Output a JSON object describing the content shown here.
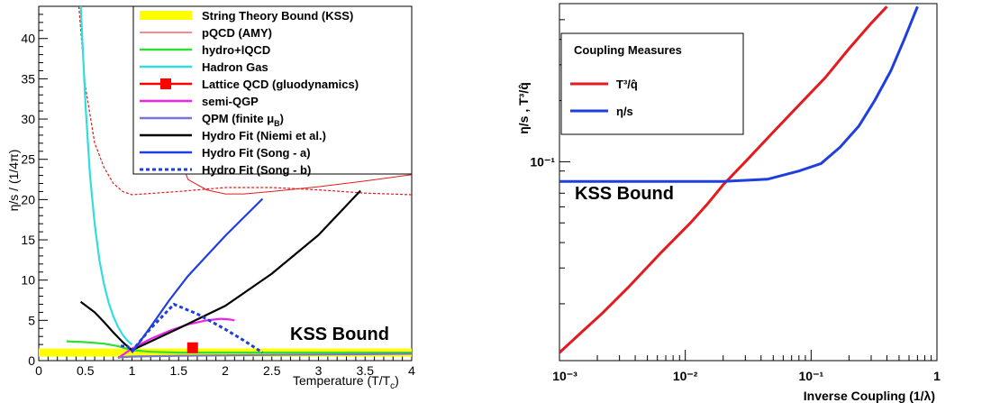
{
  "chart_data": [
    {
      "type": "line",
      "xlabel": "Temperature (T/T",
      "xlabel_sub": "c",
      "xlabel_close": ")",
      "ylabel": "η/s / (1/4π)",
      "xlim": [
        0,
        4
      ],
      "ylim": [
        0,
        44
      ],
      "x_ticks": [
        "0",
        "0.5",
        "1",
        "1.5",
        "2",
        "2.5",
        "3",
        "3.5",
        "4"
      ],
      "y_ticks": [
        "0",
        "5",
        "10",
        "15",
        "20",
        "25",
        "30",
        "35",
        "40"
      ],
      "legend_position": "top-right",
      "annotation": "KSS Bound",
      "series": [
        {
          "name": "String Theory Bound (KSS)",
          "color": "#ffff00",
          "style": "band",
          "x": [
            0,
            4
          ],
          "y": [
            1,
            1
          ]
        },
        {
          "name": "pQCD (AMY)",
          "color": "#e41a1c",
          "style": "solid",
          "x": [
            1.45,
            1.6,
            1.8,
            2.0,
            2.2,
            2.5,
            3.0,
            3.5,
            4.0
          ],
          "y": [
            27.5,
            22.5,
            21.2,
            20.7,
            20.7,
            21.0,
            21.6,
            22.3,
            23.1
          ]
        },
        {
          "name": "pQCD (AMY) alt",
          "color": "#e41a1c",
          "style": "dashed",
          "x": [
            0.43,
            0.5,
            0.6,
            0.7,
            0.8,
            0.9,
            1.0,
            1.5,
            2.0,
            2.5,
            3.0,
            3.5,
            4.0
          ],
          "y": [
            44,
            34,
            27,
            24,
            22,
            21,
            20.6,
            21.0,
            21.5,
            21.5,
            21.2,
            20.8,
            20.6
          ]
        },
        {
          "name": "hydro+lQCD",
          "color": "#33dd33",
          "style": "solid",
          "x": [
            0.3,
            0.5,
            0.7,
            0.85,
            1.0,
            1.2,
            1.5,
            2.0,
            3.0,
            4.0
          ],
          "y": [
            2.4,
            2.3,
            2.1,
            1.8,
            1.3,
            1.1,
            1.0,
            1.0,
            1.0,
            1.0
          ]
        },
        {
          "name": "Hadron Gas",
          "color": "#33dddd",
          "style": "solid",
          "x": [
            0.45,
            0.5,
            0.55,
            0.6,
            0.65,
            0.7,
            0.75,
            0.8,
            0.85,
            0.9,
            0.95,
            1.0
          ],
          "y": [
            44,
            32,
            23,
            17,
            12.5,
            9.5,
            7.2,
            5.5,
            4.2,
            3.2,
            2.5,
            2.0
          ]
        },
        {
          "name": "Lattice QCD (gluodynamics)",
          "color": "#ff0000",
          "style": "marker",
          "x": [
            1.65
          ],
          "y": [
            1.6
          ]
        },
        {
          "name": "semi-QGP",
          "color": "#ee22ee",
          "style": "solid",
          "x": [
            0.85,
            1.0,
            1.2,
            1.4,
            1.6,
            1.8,
            1.95,
            2.05,
            2.1
          ],
          "y": [
            0.3,
            1.5,
            2.7,
            3.7,
            4.5,
            5.0,
            5.2,
            5.1,
            5.0
          ]
        },
        {
          "name": "QPM (finite μB)",
          "color": "#7777cc",
          "style": "solid",
          "x": [
            0.85,
            1.0,
            1.2,
            1.5,
            2.0,
            2.5,
            3.0,
            3.5,
            4.0
          ],
          "y": [
            0.4,
            0.5,
            0.55,
            0.6,
            0.65,
            0.7,
            0.75,
            0.8,
            0.85
          ]
        },
        {
          "name": "Hydro Fit (Niemi et al.)",
          "color": "#000000",
          "style": "solid",
          "x": [
            0.45,
            0.6,
            0.7,
            0.8,
            0.9,
            1.0,
            1.5,
            2.0,
            2.5,
            3.0,
            3.45
          ],
          "y": [
            7.3,
            6.0,
            4.8,
            3.5,
            2.3,
            1.3,
            4.0,
            6.8,
            10.8,
            15.6,
            21.1
          ]
        },
        {
          "name": "Hydro Fit (Song - a)",
          "color": "#1f3ee0",
          "style": "solid",
          "x": [
            1.0,
            1.2,
            1.4,
            1.6,
            1.8,
            2.0,
            2.2,
            2.4
          ],
          "y": [
            1.0,
            4.2,
            7.5,
            10.5,
            13.0,
            15.5,
            17.8,
            20.1
          ]
        },
        {
          "name": "Hydro Fit (Song - b)",
          "color": "#1f3ee0",
          "style": "dotted",
          "x": [
            0.88,
            0.95,
            1.0,
            1.2,
            1.45,
            1.7,
            2.0,
            2.2,
            2.4
          ],
          "y": [
            1.8,
            1.8,
            1.2,
            4.0,
            7.0,
            5.8,
            3.9,
            2.5,
            1.0
          ]
        }
      ]
    },
    {
      "type": "line",
      "xscale": "log",
      "yscale": "log",
      "xlabel": "Inverse Coupling (1/λ)",
      "ylabel": "η/s , T³/q̂",
      "x_ticks": [
        "10⁻³",
        "10⁻²",
        "10⁻¹",
        "1"
      ],
      "y_tick": "10⁻¹",
      "legend_title": "Coupling Measures",
      "legend_position": "top-left",
      "annotation": "KSS Bound",
      "series": [
        {
          "name": "T³/q̂",
          "color": "#e41a1c",
          "x": [
            0.001,
            0.0015,
            0.0022,
            0.0035,
            0.0065,
            0.011,
            0.015,
            0.02,
            0.03,
            0.05,
            0.08,
            0.13,
            0.2,
            0.3,
            0.4
          ],
          "y": [
            0.0115,
            0.0145,
            0.018,
            0.024,
            0.036,
            0.05,
            0.062,
            0.077,
            0.1,
            0.14,
            0.19,
            0.26,
            0.36,
            0.48,
            0.58
          ]
        },
        {
          "name": "η/s",
          "color": "#1f3ee0",
          "x": [
            0.001,
            0.005,
            0.01,
            0.02,
            0.045,
            0.08,
            0.12,
            0.17,
            0.24,
            0.32,
            0.43,
            0.55,
            0.7
          ],
          "y": [
            0.08,
            0.08,
            0.08,
            0.08,
            0.082,
            0.09,
            0.098,
            0.118,
            0.15,
            0.2,
            0.28,
            0.4,
            0.58
          ]
        }
      ]
    }
  ]
}
